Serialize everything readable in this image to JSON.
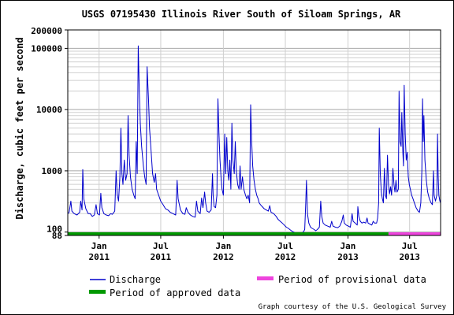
{
  "colors": {
    "discharge": "#0000cc",
    "approved": "#009900",
    "provisional": "#ee44dd",
    "grid": "#cfcfcf",
    "grid_major": "#a8a8a8"
  },
  "chart_data": {
    "type": "line",
    "title": "USGS 07195430 Illinois River South of Siloam Springs, AR",
    "ylabel": "Discharge, cubic feet per second",
    "yscale": "log",
    "ylim": [
      88,
      200000
    ],
    "ytick_labels": [
      "200000",
      "100000",
      "10000",
      "1000",
      "100",
      "88"
    ],
    "ytick_values": [
      200000,
      100000,
      10000,
      1000,
      100,
      88
    ],
    "xlim": [
      "2010-10-01",
      "2013-09-30"
    ],
    "xticks": [
      {
        "date": "2011-01-01",
        "line1": "Jan",
        "line2": "2011"
      },
      {
        "date": "2011-07-01",
        "line1": "Jul",
        "line2": "2011"
      },
      {
        "date": "2012-01-01",
        "line1": "Jan",
        "line2": "2012"
      },
      {
        "date": "2012-07-01",
        "line1": "Jul",
        "line2": "2012"
      },
      {
        "date": "2013-01-01",
        "line1": "Jan",
        "line2": "2013"
      },
      {
        "date": "2013-07-01",
        "line1": "Jul",
        "line2": "2013"
      }
    ],
    "grid": true,
    "series": [
      {
        "name": "Discharge",
        "points": [
          [
            "2010-10-01",
            200
          ],
          [
            "2010-10-05",
            210
          ],
          [
            "2010-10-10",
            320
          ],
          [
            "2010-10-13",
            220
          ],
          [
            "2010-10-20",
            200
          ],
          [
            "2010-10-28",
            190
          ],
          [
            "2010-11-05",
            210
          ],
          [
            "2010-11-08",
            320
          ],
          [
            "2010-11-12",
            230
          ],
          [
            "2010-11-14",
            1050
          ],
          [
            "2010-11-17",
            350
          ],
          [
            "2010-11-23",
            240
          ],
          [
            "2010-11-30",
            200
          ],
          [
            "2010-12-06",
            200
          ],
          [
            "2010-12-12",
            180
          ],
          [
            "2010-12-18",
            190
          ],
          [
            "2010-12-23",
            280
          ],
          [
            "2010-12-27",
            200
          ],
          [
            "2011-01-02",
            190
          ],
          [
            "2011-01-06",
            430
          ],
          [
            "2011-01-09",
            250
          ],
          [
            "2011-01-15",
            200
          ],
          [
            "2011-01-22",
            190
          ],
          [
            "2011-01-29",
            185
          ],
          [
            "2011-02-04",
            200
          ],
          [
            "2011-02-09",
            195
          ],
          [
            "2011-02-16",
            220
          ],
          [
            "2011-02-20",
            1000
          ],
          [
            "2011-02-23",
            420
          ],
          [
            "2011-02-27",
            320
          ],
          [
            "2011-03-03",
            800
          ],
          [
            "2011-03-06",
            5000
          ],
          [
            "2011-03-09",
            900
          ],
          [
            "2011-03-12",
            600
          ],
          [
            "2011-03-16",
            1500
          ],
          [
            "2011-03-20",
            700
          ],
          [
            "2011-03-24",
            900
          ],
          [
            "2011-03-27",
            8000
          ],
          [
            "2011-03-30",
            1800
          ],
          [
            "2011-04-03",
            800
          ],
          [
            "2011-04-08",
            500
          ],
          [
            "2011-04-13",
            400
          ],
          [
            "2011-04-17",
            350
          ],
          [
            "2011-04-20",
            3000
          ],
          [
            "2011-04-23",
            900
          ],
          [
            "2011-04-26",
            110000
          ],
          [
            "2011-04-29",
            20000
          ],
          [
            "2011-05-02",
            6000
          ],
          [
            "2011-05-06",
            2500
          ],
          [
            "2011-05-11",
            1200
          ],
          [
            "2011-05-15",
            800
          ],
          [
            "2011-05-19",
            600
          ],
          [
            "2011-05-22",
            50000
          ],
          [
            "2011-05-26",
            15000
          ],
          [
            "2011-05-29",
            5000
          ],
          [
            "2011-06-03",
            2000
          ],
          [
            "2011-06-07",
            900
          ],
          [
            "2011-06-12",
            650
          ],
          [
            "2011-06-16",
            900
          ],
          [
            "2011-06-19",
            500
          ],
          [
            "2011-06-25",
            400
          ],
          [
            "2011-07-01",
            320
          ],
          [
            "2011-07-08",
            280
          ],
          [
            "2011-07-15",
            240
          ],
          [
            "2011-07-22",
            230
          ],
          [
            "2011-07-29",
            210
          ],
          [
            "2011-08-06",
            200
          ],
          [
            "2011-08-14",
            190
          ],
          [
            "2011-08-18",
            700
          ],
          [
            "2011-08-21",
            350
          ],
          [
            "2011-08-28",
            230
          ],
          [
            "2011-09-04",
            200
          ],
          [
            "2011-09-10",
            195
          ],
          [
            "2011-09-14",
            250
          ],
          [
            "2011-09-19",
            210
          ],
          [
            "2011-09-26",
            190
          ],
          [
            "2011-10-03",
            180
          ],
          [
            "2011-10-10",
            175
          ],
          [
            "2011-10-14",
            320
          ],
          [
            "2011-10-18",
            220
          ],
          [
            "2011-10-25",
            200
          ],
          [
            "2011-10-29",
            360
          ],
          [
            "2011-11-02",
            250
          ],
          [
            "2011-11-07",
            450
          ],
          [
            "2011-11-10",
            300
          ],
          [
            "2011-11-14",
            220
          ],
          [
            "2011-11-20",
            210
          ],
          [
            "2011-11-26",
            230
          ],
          [
            "2011-11-30",
            900
          ],
          [
            "2011-12-02",
            400
          ],
          [
            "2011-12-05",
            260
          ],
          [
            "2011-12-09",
            250
          ],
          [
            "2011-12-13",
            400
          ],
          [
            "2011-12-16",
            15000
          ],
          [
            "2011-12-19",
            4000
          ],
          [
            "2011-12-22",
            1500
          ],
          [
            "2011-12-25",
            800
          ],
          [
            "2011-12-28",
            500
          ],
          [
            "2012-01-01",
            400
          ],
          [
            "2012-01-05",
            4000
          ],
          [
            "2012-01-08",
            900
          ],
          [
            "2012-01-11",
            3500
          ],
          [
            "2012-01-14",
            1000
          ],
          [
            "2012-01-17",
            700
          ],
          [
            "2012-01-20",
            1500
          ],
          [
            "2012-01-23",
            500
          ],
          [
            "2012-01-26",
            6000
          ],
          [
            "2012-01-29",
            1500
          ],
          [
            "2012-02-02",
            900
          ],
          [
            "2012-02-05",
            3000
          ],
          [
            "2012-02-08",
            1000
          ],
          [
            "2012-02-12",
            600
          ],
          [
            "2012-02-16",
            500
          ],
          [
            "2012-02-19",
            1200
          ],
          [
            "2012-02-22",
            500
          ],
          [
            "2012-02-26",
            800
          ],
          [
            "2012-03-01",
            500
          ],
          [
            "2012-03-06",
            400
          ],
          [
            "2012-03-10",
            350
          ],
          [
            "2012-03-14",
            400
          ],
          [
            "2012-03-18",
            300
          ],
          [
            "2012-03-21",
            12000
          ],
          [
            "2012-03-24",
            3000
          ],
          [
            "2012-03-27",
            1200
          ],
          [
            "2012-03-31",
            700
          ],
          [
            "2012-04-04",
            500
          ],
          [
            "2012-04-08",
            400
          ],
          [
            "2012-04-12",
            350
          ],
          [
            "2012-04-15",
            300
          ],
          [
            "2012-04-19",
            280
          ],
          [
            "2012-04-24",
            260
          ],
          [
            "2012-04-30",
            240
          ],
          [
            "2012-05-06",
            230
          ],
          [
            "2012-05-12",
            220
          ],
          [
            "2012-05-16",
            270
          ],
          [
            "2012-05-20",
            210
          ],
          [
            "2012-05-28",
            200
          ],
          [
            "2012-06-04",
            180
          ],
          [
            "2012-06-10",
            160
          ],
          [
            "2012-06-16",
            150
          ],
          [
            "2012-06-22",
            140
          ],
          [
            "2012-06-28",
            130
          ],
          [
            "2012-07-04",
            120
          ],
          [
            "2012-07-10",
            115
          ],
          [
            "2012-07-16",
            108
          ],
          [
            "2012-07-22",
            102
          ],
          [
            "2012-07-28",
            98
          ],
          [
            "2012-08-03",
            95
          ],
          [
            "2012-08-09",
            94
          ],
          [
            "2012-08-13",
            92
          ],
          [
            "2012-08-17",
            96
          ],
          [
            "2012-08-23",
            100
          ],
          [
            "2012-08-27",
            110
          ],
          [
            "2012-08-30",
            300
          ],
          [
            "2012-09-01",
            700
          ],
          [
            "2012-09-04",
            200
          ],
          [
            "2012-09-08",
            140
          ],
          [
            "2012-09-13",
            120
          ],
          [
            "2012-09-18",
            115
          ],
          [
            "2012-09-24",
            110
          ],
          [
            "2012-09-28",
            105
          ],
          [
            "2012-10-03",
            110
          ],
          [
            "2012-10-09",
            120
          ],
          [
            "2012-10-13",
            320
          ],
          [
            "2012-10-16",
            180
          ],
          [
            "2012-10-20",
            140
          ],
          [
            "2012-10-26",
            130
          ],
          [
            "2012-11-02",
            125
          ],
          [
            "2012-11-10",
            120
          ],
          [
            "2012-11-14",
            150
          ],
          [
            "2012-11-18",
            125
          ],
          [
            "2012-11-25",
            120
          ],
          [
            "2012-12-02",
            118
          ],
          [
            "2012-12-08",
            125
          ],
          [
            "2012-12-14",
            150
          ],
          [
            "2012-12-18",
            190
          ],
          [
            "2012-12-21",
            140
          ],
          [
            "2012-12-27",
            130
          ],
          [
            "2013-01-02",
            125
          ],
          [
            "2013-01-08",
            120
          ],
          [
            "2013-01-13",
            200
          ],
          [
            "2013-01-16",
            150
          ],
          [
            "2013-01-22",
            140
          ],
          [
            "2013-01-28",
            130
          ],
          [
            "2013-01-30",
            260
          ],
          [
            "2013-02-02",
            180
          ],
          [
            "2013-02-06",
            150
          ],
          [
            "2013-02-11",
            140
          ],
          [
            "2013-02-16",
            145
          ],
          [
            "2013-02-22",
            140
          ],
          [
            "2013-02-26",
            170
          ],
          [
            "2013-03-01",
            140
          ],
          [
            "2013-03-06",
            135
          ],
          [
            "2013-03-12",
            130
          ],
          [
            "2013-03-16",
            150
          ],
          [
            "2013-03-20",
            140
          ],
          [
            "2013-03-26",
            140
          ],
          [
            "2013-03-29",
            170
          ],
          [
            "2013-04-01",
            300
          ],
          [
            "2013-04-03",
            5000
          ],
          [
            "2013-04-06",
            900
          ],
          [
            "2013-04-09",
            450
          ],
          [
            "2013-04-12",
            350
          ],
          [
            "2013-04-15",
            300
          ],
          [
            "2013-04-18",
            1100
          ],
          [
            "2013-04-21",
            400
          ],
          [
            "2013-04-24",
            350
          ],
          [
            "2013-04-27",
            1800
          ],
          [
            "2013-04-30",
            600
          ],
          [
            "2013-05-03",
            420
          ],
          [
            "2013-05-06",
            550
          ],
          [
            "2013-05-09",
            400
          ],
          [
            "2013-05-13",
            1100
          ],
          [
            "2013-05-16",
            600
          ],
          [
            "2013-05-19",
            450
          ],
          [
            "2013-05-22",
            700
          ],
          [
            "2013-05-25",
            450
          ],
          [
            "2013-05-29",
            500
          ],
          [
            "2013-05-31",
            20000
          ],
          [
            "2013-06-03",
            3000
          ],
          [
            "2013-06-06",
            2500
          ],
          [
            "2013-06-08",
            9000
          ],
          [
            "2013-06-11",
            2000
          ],
          [
            "2013-06-13",
            1200
          ],
          [
            "2013-06-15",
            25000
          ],
          [
            "2013-06-18",
            4000
          ],
          [
            "2013-06-21",
            1500
          ],
          [
            "2013-06-24",
            2000
          ],
          [
            "2013-06-27",
            800
          ],
          [
            "2013-06-30",
            600
          ],
          [
            "2013-07-03",
            500
          ],
          [
            "2013-07-07",
            400
          ],
          [
            "2013-07-11",
            350
          ],
          [
            "2013-07-15",
            300
          ],
          [
            "2013-07-20",
            250
          ],
          [
            "2013-07-26",
            220
          ],
          [
            "2013-07-30",
            210
          ],
          [
            "2013-08-03",
            300
          ],
          [
            "2013-08-06",
            1000
          ],
          [
            "2013-08-08",
            15000
          ],
          [
            "2013-08-10",
            3000
          ],
          [
            "2013-08-12",
            8000
          ],
          [
            "2013-08-15",
            1500
          ],
          [
            "2013-08-19",
            700
          ],
          [
            "2013-08-23",
            450
          ],
          [
            "2013-08-28",
            350
          ],
          [
            "2013-09-02",
            300
          ],
          [
            "2013-09-06",
            280
          ],
          [
            "2013-09-09",
            1000
          ],
          [
            "2013-09-11",
            400
          ],
          [
            "2013-09-15",
            320
          ],
          [
            "2013-09-19",
            400
          ],
          [
            "2013-09-21",
            4000
          ],
          [
            "2013-09-23",
            800
          ],
          [
            "2013-09-25",
            400
          ],
          [
            "2013-09-28",
            320
          ],
          [
            "2013-09-30",
            300
          ]
        ]
      }
    ],
    "periods": [
      {
        "name": "Period of approved data",
        "start": "2010-10-01",
        "end": "2013-04-30"
      },
      {
        "name": "Period of provisional data",
        "start": "2013-04-30",
        "end": "2013-09-30"
      }
    ],
    "legend": {
      "position": "bottom",
      "items": [
        {
          "label": "Discharge",
          "kind": "line"
        },
        {
          "label": "Period of provisional data",
          "kind": "bar"
        },
        {
          "label": "Period of approved data",
          "kind": "bar"
        }
      ]
    },
    "credit": "Graph courtesy of the U.S. Geological Survey"
  }
}
